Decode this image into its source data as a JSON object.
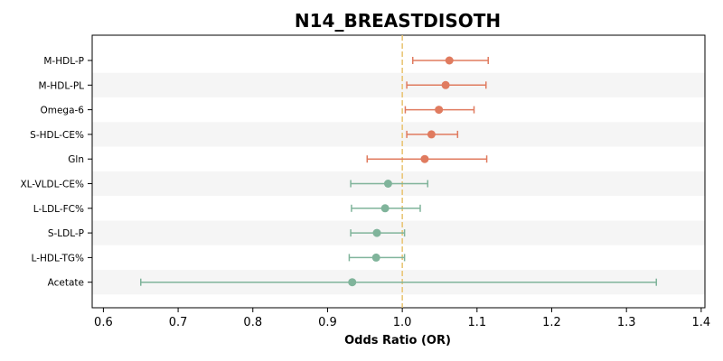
{
  "chart_data": {
    "type": "forest",
    "title": "N14_BREASTDISOTH",
    "xlabel": "Odds Ratio (OR)",
    "xlim": [
      0.585,
      1.405
    ],
    "xticks": [
      0.6,
      0.7,
      0.8,
      0.9,
      1.0,
      1.1,
      1.2,
      1.3,
      1.4
    ],
    "xtick_labels": [
      "0.6",
      "0.7",
      "0.8",
      "0.9",
      "1.0",
      "1.1",
      "1.2",
      "1.3",
      "1.4"
    ],
    "reference_line": 1.0,
    "colors": {
      "positive": "#e07b5f",
      "negative": "#80b49b",
      "reference": "#e8c26e",
      "stripe": "#f5f5f5"
    },
    "rows": [
      {
        "label": "M-HDL-P",
        "or": 1.063,
        "lower": 1.014,
        "upper": 1.115,
        "group": "positive"
      },
      {
        "label": "M-HDL-PL",
        "or": 1.058,
        "lower": 1.006,
        "upper": 1.112,
        "group": "positive"
      },
      {
        "label": "Omega-6",
        "or": 1.049,
        "lower": 1.004,
        "upper": 1.096,
        "group": "positive"
      },
      {
        "label": "S-HDL-CE%",
        "or": 1.039,
        "lower": 1.006,
        "upper": 1.074,
        "group": "positive"
      },
      {
        "label": "Gln",
        "or": 1.03,
        "lower": 0.953,
        "upper": 1.113,
        "group": "positive"
      },
      {
        "label": "XL-VLDL-CE%",
        "or": 0.981,
        "lower": 0.931,
        "upper": 1.034,
        "group": "negative"
      },
      {
        "label": "L-LDL-FC%",
        "or": 0.977,
        "lower": 0.932,
        "upper": 1.024,
        "group": "negative"
      },
      {
        "label": "S-LDL-P",
        "or": 0.966,
        "lower": 0.931,
        "upper": 1.003,
        "group": "negative"
      },
      {
        "label": "L-HDL-TG%",
        "or": 0.965,
        "lower": 0.929,
        "upper": 1.003,
        "group": "negative"
      },
      {
        "label": "Acetate",
        "or": 0.933,
        "lower": 0.65,
        "upper": 1.34,
        "group": "negative"
      }
    ]
  }
}
